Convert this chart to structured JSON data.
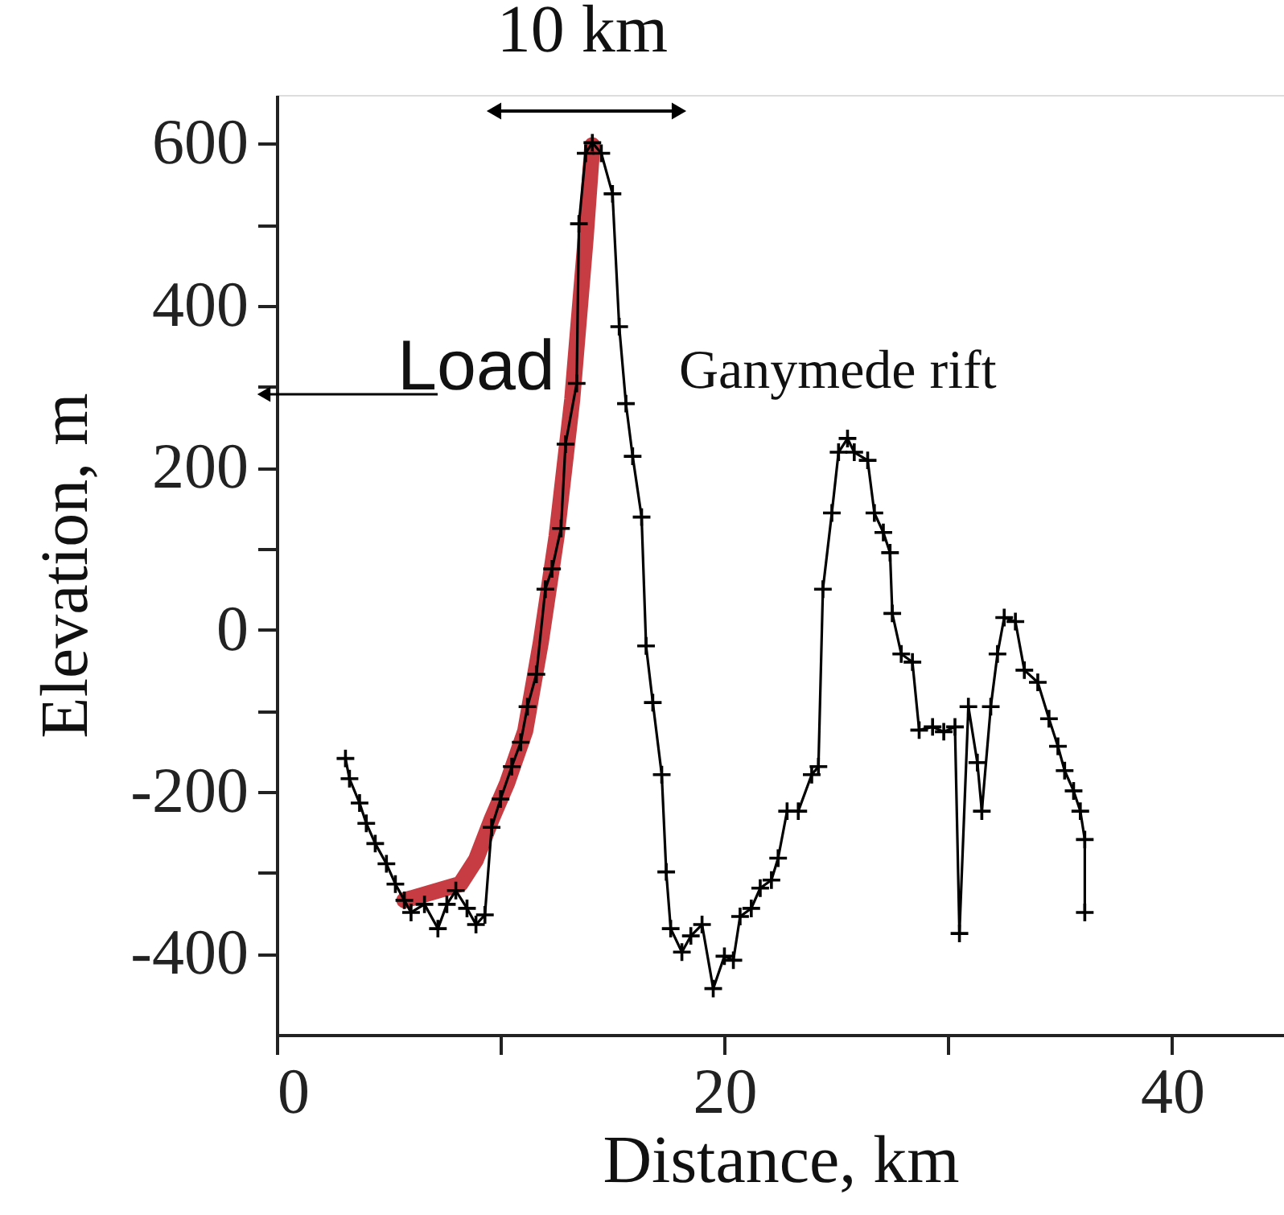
{
  "chart_data": {
    "type": "line",
    "xlabel": "Distance, km",
    "ylabel": "Elevation, m",
    "xlim": [
      0,
      45
    ],
    "ylim": [
      -500,
      660
    ],
    "xticks": [
      0,
      {
        "value": 10,
        "label": null
      },
      20,
      {
        "value": 30,
        "label": null
      },
      40
    ],
    "yticks": [
      -400,
      {
        "value": -300,
        "label": null
      },
      -200,
      {
        "value": -100,
        "label": null
      },
      0,
      {
        "value": 100,
        "label": null
      },
      200,
      {
        "value": 300,
        "label": null
      },
      400,
      {
        "value": 500,
        "label": null
      },
      600
    ],
    "grid": false,
    "annotations": [
      "10 km",
      "Load",
      "Ganymede rift"
    ],
    "series": [
      {
        "color": "#c1272d",
        "marker": "none",
        "x": [
          5.7,
          8.2,
          8.9,
          9.6,
          10.3,
          11.1,
          11.8,
          12.5,
          13.2,
          13.8,
          14.1
        ],
        "values": [
          -334,
          -314,
          -284,
          -234,
          -189,
          -125,
          -15,
          115,
          284,
          483,
          598
        ]
      },
      {
        "color": "#000000",
        "marker": "cross",
        "x": [
          3.07,
          3.25,
          3.7,
          4.0,
          4.4,
          4.9,
          5.3,
          5.7,
          6.0,
          6.6,
          7.2,
          7.6,
          8.0,
          8.5,
          8.9,
          9.3,
          9.6,
          10.0,
          10.5,
          10.9,
          11.2,
          11.6,
          12.0,
          12.3,
          12.7,
          12.9,
          13.4,
          13.5,
          13.8,
          14.1,
          14.5,
          15.0,
          15.3,
          15.6,
          15.9,
          16.3,
          16.5,
          16.8,
          17.2,
          17.4,
          17.6,
          18.1,
          18.5,
          19.0,
          19.5,
          20.0,
          20.4,
          20.7,
          21.2,
          21.6,
          22.1,
          22.4,
          22.8,
          23.3,
          23.9,
          24.2,
          24.4,
          24.8,
          25.1,
          25.5,
          25.8,
          26.4,
          26.7,
          27.1,
          27.4,
          27.5,
          27.9,
          28.4,
          28.7,
          29.3,
          29.8,
          30.3,
          30.5,
          30.9,
          31.3,
          31.5,
          31.9,
          32.2,
          32.5,
          33.0,
          33.4,
          34.0,
          34.5,
          34.9,
          35.2,
          35.6,
          35.9,
          36.1,
          36.1
        ],
        "values": [
          -159,
          -184,
          -214,
          -239,
          -264,
          -289,
          -314,
          -334,
          -349,
          -339,
          -369,
          -339,
          -322,
          -344,
          -364,
          -352,
          -244,
          -209,
          -169,
          -139,
          -95,
          -55,
          50,
          75,
          125,
          229,
          304,
          501,
          588,
          601,
          588,
          538,
          374,
          279,
          214,
          139,
          -20,
          -90,
          -179,
          -299,
          -369,
          -398,
          -378,
          -364,
          -443,
          -403,
          -408,
          -354,
          -344,
          -319,
          -309,
          -282,
          -224,
          -224,
          -179,
          -169,
          50,
          144,
          219,
          236,
          219,
          209,
          144,
          120,
          95,
          20,
          -30,
          -40,
          -124,
          -120,
          -126,
          -120,
          -375,
          -95,
          -164,
          -224,
          -95,
          -30,
          15,
          10,
          -50,
          -65,
          -110,
          -144,
          -174,
          -199,
          -224,
          -259,
          -349
        ]
      }
    ]
  }
}
